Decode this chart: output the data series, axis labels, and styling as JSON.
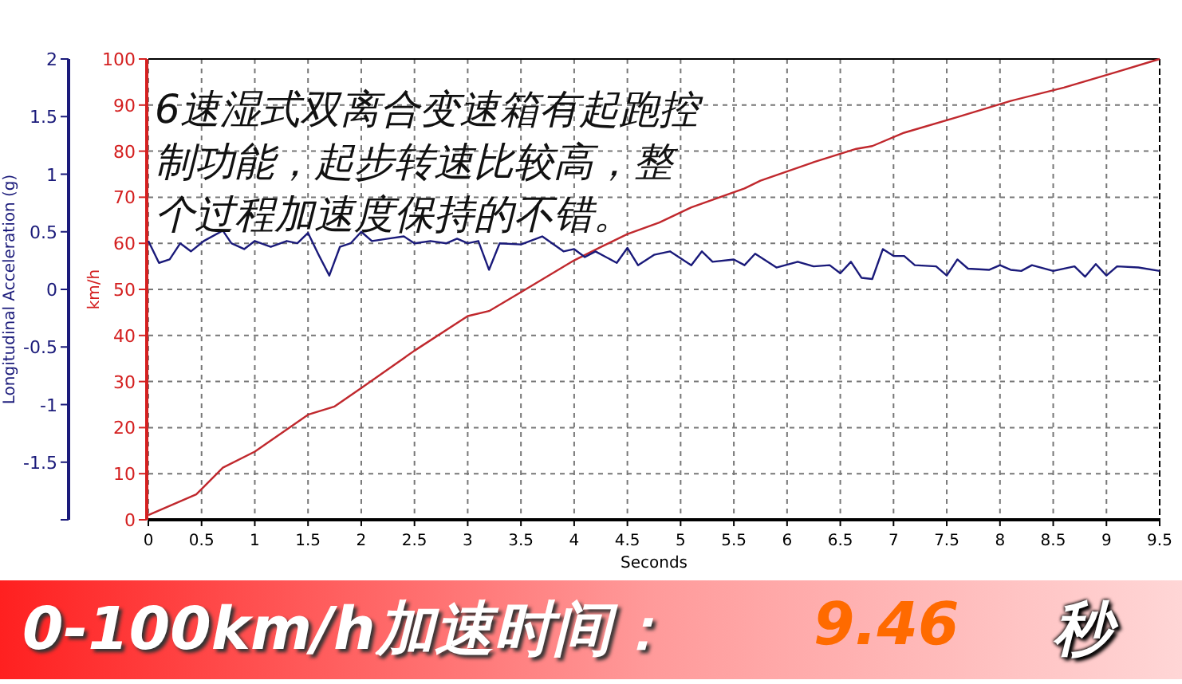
{
  "chart_data": {
    "type": "line",
    "xlabel": "Seconds",
    "ylabel": "Longitudinal Acceleration (g)",
    "y2label": "km/h",
    "annotations": [
      "6速湿式双离合变速箱有起跑控制功能，起步转速比较高，整个过程加速度保持的不错。",
      "0-100km/h加速时间：",
      "9.46",
      "秒"
    ],
    "xlim": [
      0,
      9.5
    ],
    "xticks": [
      0,
      0.5,
      1,
      1.5,
      2,
      2.5,
      3,
      3.5,
      4,
      4.5,
      5,
      5.5,
      6,
      6.5,
      7,
      7.5,
      8,
      8.5,
      9,
      9.5
    ],
    "ylim": [
      -2,
      2
    ],
    "yticks": [
      {
        "value": -2,
        "label": null
      },
      -1.5,
      -1,
      -0.5,
      0,
      0.5,
      1,
      1.5,
      2
    ],
    "y2lim": [
      0,
      100
    ],
    "y2ticks": [
      0,
      10,
      20,
      30,
      40,
      50,
      60,
      70,
      80,
      90,
      100
    ],
    "grid": true,
    "series": [
      {
        "axis": "y2",
        "color": "#c0282d",
        "x": [
          0,
          0.45,
          0.7,
          1.0,
          1.5,
          1.75,
          2.0,
          2.5,
          3.0,
          3.2,
          3.5,
          4.0,
          4.25,
          4.5,
          4.8,
          5.1,
          5.6,
          5.75,
          6.25,
          6.65,
          6.8,
          7.1,
          7.6,
          8.1,
          8.6,
          9.1,
          9.5
        ],
        "values": [
          1,
          5.5,
          11.3,
          14.8,
          22.8,
          24.6,
          28.6,
          36.7,
          44.2,
          45.3,
          49.4,
          56.3,
          59.2,
          62.0,
          64.5,
          67.8,
          71.9,
          73.6,
          77.6,
          80.5,
          81.1,
          84.0,
          87.4,
          90.9,
          93.8,
          97.2,
          100
        ]
      },
      {
        "axis": "y",
        "color": "#1a1a7a",
        "x": [
          0,
          0.1,
          0.2,
          0.3,
          0.4,
          0.52,
          0.7,
          0.78,
          0.9,
          1.0,
          1.15,
          1.3,
          1.4,
          1.5,
          1.6,
          1.7,
          1.8,
          1.9,
          2.0,
          2.1,
          2.25,
          2.4,
          2.5,
          2.65,
          2.8,
          2.9,
          3.0,
          3.1,
          3.2,
          3.3,
          3.5,
          3.7,
          3.9,
          4.0,
          4.1,
          4.2,
          4.4,
          4.5,
          4.6,
          4.75,
          4.9,
          5.1,
          5.2,
          5.3,
          5.5,
          5.6,
          5.7,
          5.9,
          6.1,
          6.25,
          6.4,
          6.5,
          6.6,
          6.7,
          6.8,
          6.9,
          7.0,
          7.1,
          7.2,
          7.4,
          7.5,
          7.6,
          7.7,
          7.9,
          8.0,
          8.1,
          8.2,
          8.3,
          8.5,
          8.7,
          8.8,
          8.9,
          9.0,
          9.1,
          9.3,
          9.5
        ],
        "values": [
          0.42,
          0.23,
          0.26,
          0.4,
          0.33,
          0.42,
          0.51,
          0.4,
          0.35,
          0.42,
          0.37,
          0.42,
          0.4,
          0.49,
          0.3,
          0.12,
          0.37,
          0.4,
          0.5,
          0.42,
          0.44,
          0.46,
          0.4,
          0.42,
          0.4,
          0.44,
          0.4,
          0.42,
          0.17,
          0.4,
          0.39,
          0.46,
          0.33,
          0.35,
          0.28,
          0.33,
          0.23,
          0.36,
          0.21,
          0.3,
          0.33,
          0.21,
          0.33,
          0.24,
          0.26,
          0.21,
          0.31,
          0.19,
          0.24,
          0.2,
          0.21,
          0.14,
          0.24,
          0.1,
          0.09,
          0.35,
          0.29,
          0.29,
          0.21,
          0.2,
          0.12,
          0.26,
          0.18,
          0.17,
          0.21,
          0.17,
          0.16,
          0.21,
          0.16,
          0.2,
          0.11,
          0.22,
          0.12,
          0.2,
          0.19,
          0.16
        ]
      }
    ]
  }
}
